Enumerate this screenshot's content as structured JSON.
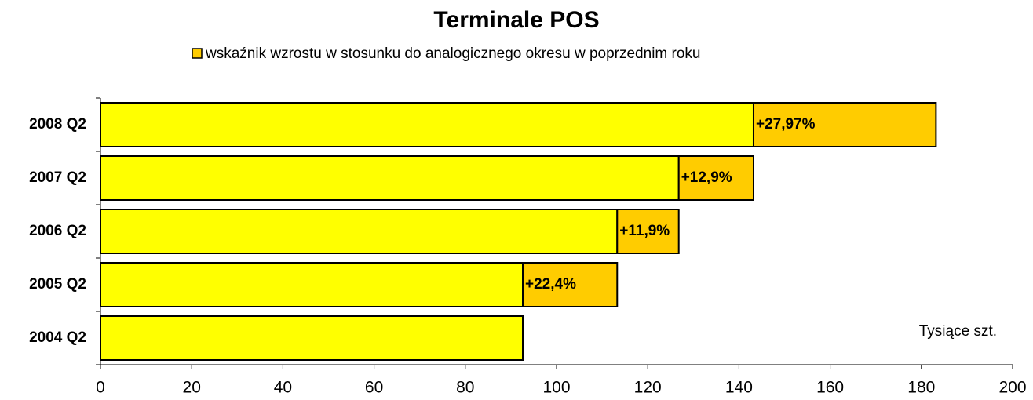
{
  "chart_data": {
    "type": "stacked-barh",
    "title": "Terminale POS",
    "categories": [
      "2004 Q2",
      "2005 Q2",
      "2006 Q2",
      "2007 Q2",
      "2008 Q2"
    ],
    "series": [
      {
        "color": "#ffff00",
        "values": [
          92.6,
          92.6,
          113.3,
          126.8,
          143.2
        ]
      },
      {
        "name": "wskaźnik wzrostu w stosunku do analogicznego okresu w poprzednim roku",
        "color": "#ffcc00",
        "values": [
          null,
          20.7,
          13.5,
          16.4,
          40.0
        ],
        "labels": [
          null,
          "+22,4%",
          "+11,9%",
          "+12,9%",
          "+27,97%"
        ]
      }
    ],
    "annotation": "Tysiące szt.",
    "xlim": [
      0,
      200
    ],
    "xticks": [
      0,
      20,
      40,
      60,
      80,
      100,
      120,
      140,
      160,
      180,
      200
    ],
    "legend": "top"
  }
}
